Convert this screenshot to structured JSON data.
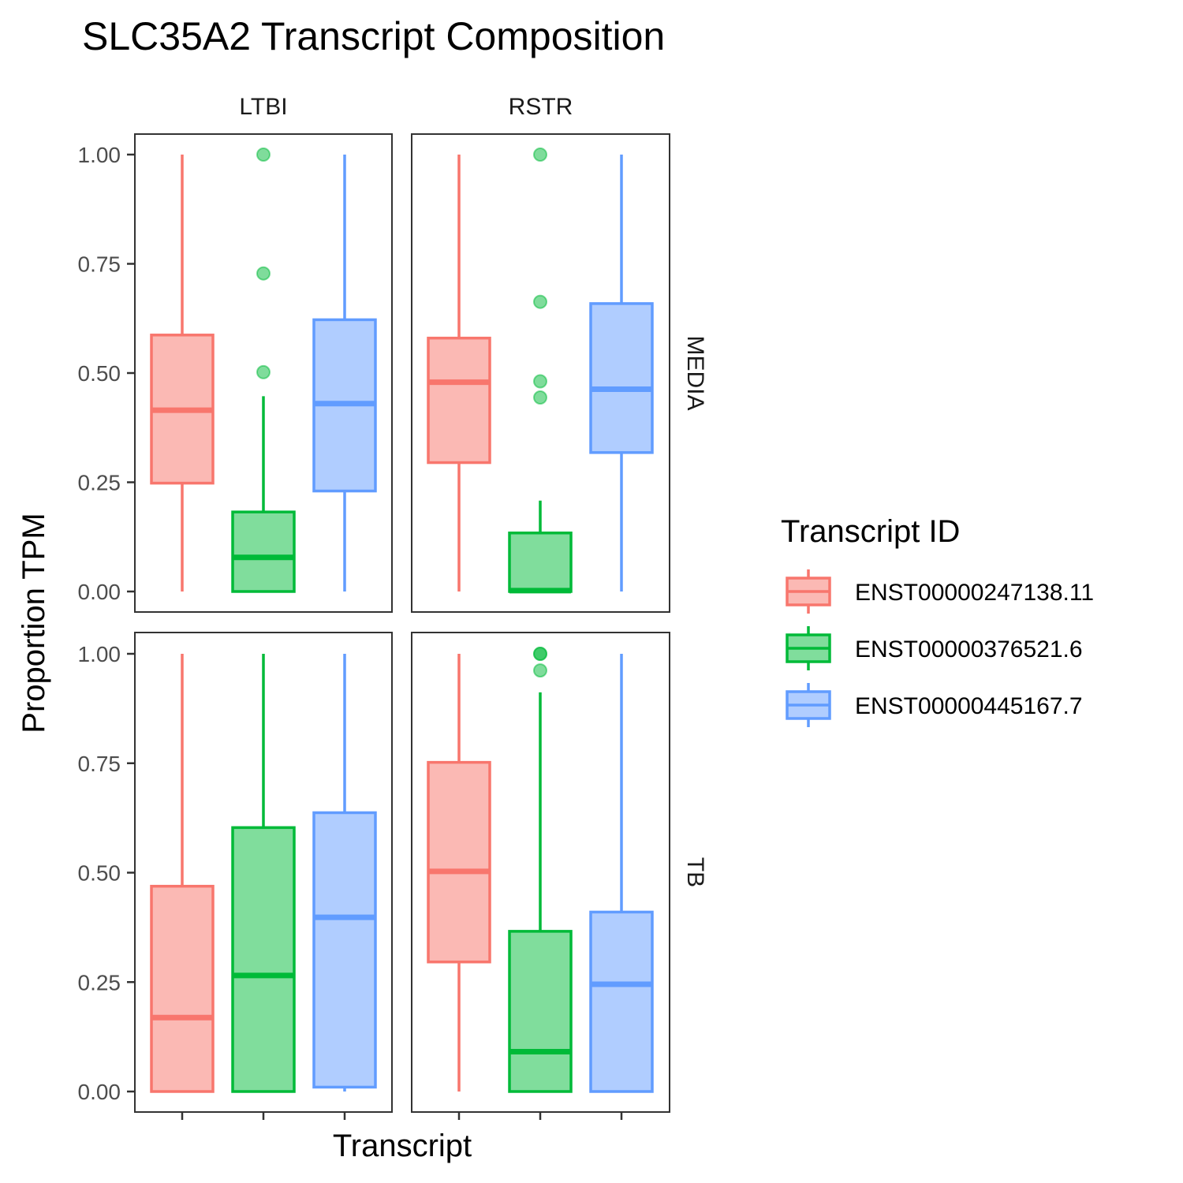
{
  "chart_data": {
    "type": "boxplot",
    "title": "SLC35A2 Transcript Composition",
    "xlabel": "Transcript",
    "ylabel": "Proportion TPM",
    "ylim": [
      0,
      1
    ],
    "yticks": [
      "0.00",
      "0.25",
      "0.50",
      "0.75",
      "1.00"
    ],
    "ytick_values": [
      0,
      0.25,
      0.5,
      0.75,
      1.0
    ],
    "facet_columns": [
      "LTBI",
      "RSTR"
    ],
    "facet_rows": [
      "MEDIA",
      "TB"
    ],
    "legend": {
      "title": "Transcript ID",
      "position": "right",
      "entries": [
        "ENST00000247138.11",
        "ENST00000376521.6",
        "ENST00000445167.7"
      ]
    },
    "colors": {
      "ENST00000247138.11": {
        "line": "#F8766D",
        "fill": "#FBB9B4"
      },
      "ENST00000376521.6": {
        "line": "#00BA38",
        "fill": "#80DD9C"
      },
      "ENST00000445167.7": {
        "line": "#619CFF",
        "fill": "#B0CDFF"
      }
    },
    "panels": [
      {
        "row": "MEDIA",
        "col": "LTBI",
        "boxes": [
          {
            "series": "ENST00000247138.11",
            "min": 0.0,
            "q1": 0.248,
            "median": 0.415,
            "q3": 0.587,
            "max": 1.0,
            "outliers": []
          },
          {
            "series": "ENST00000376521.6",
            "min": 0.0,
            "q1": 0.0,
            "median": 0.078,
            "q3": 0.182,
            "max": 0.447,
            "outliers": [
              1.0,
              0.728,
              0.502
            ]
          },
          {
            "series": "ENST00000445167.7",
            "min": 0.0,
            "q1": 0.23,
            "median": 0.43,
            "q3": 0.622,
            "max": 1.0,
            "outliers": []
          }
        ]
      },
      {
        "row": "MEDIA",
        "col": "RSTR",
        "boxes": [
          {
            "series": "ENST00000247138.11",
            "min": 0.0,
            "q1": 0.295,
            "median": 0.479,
            "q3": 0.58,
            "max": 1.0,
            "outliers": []
          },
          {
            "series": "ENST00000376521.6",
            "min": 0.0,
            "q1": 0.0,
            "median": 0.002,
            "q3": 0.134,
            "max": 0.208,
            "outliers": [
              1.0,
              0.663,
              0.481,
              0.444
            ]
          },
          {
            "series": "ENST00000445167.7",
            "min": 0.0,
            "q1": 0.318,
            "median": 0.463,
            "q3": 0.659,
            "max": 1.0,
            "outliers": []
          }
        ]
      },
      {
        "row": "TB",
        "col": "LTBI",
        "boxes": [
          {
            "series": "ENST00000247138.11",
            "min": 0.0,
            "q1": 0.0,
            "median": 0.169,
            "q3": 0.469,
            "max": 1.0,
            "outliers": []
          },
          {
            "series": "ENST00000376521.6",
            "min": 0.0,
            "q1": 0.0,
            "median": 0.265,
            "q3": 0.603,
            "max": 1.0,
            "outliers": []
          },
          {
            "series": "ENST00000445167.7",
            "min": 0.0,
            "q1": 0.01,
            "median": 0.398,
            "q3": 0.637,
            "max": 1.0,
            "outliers": []
          }
        ]
      },
      {
        "row": "TB",
        "col": "RSTR",
        "boxes": [
          {
            "series": "ENST00000247138.11",
            "min": 0.0,
            "q1": 0.296,
            "median": 0.503,
            "q3": 0.752,
            "max": 1.0,
            "outliers": []
          },
          {
            "series": "ENST00000376521.6",
            "min": 0.0,
            "q1": 0.0,
            "median": 0.091,
            "q3": 0.366,
            "max": 0.912,
            "outliers": [
              1.0,
              1.0,
              0.962
            ]
          },
          {
            "series": "ENST00000445167.7",
            "min": 0.0,
            "q1": 0.0,
            "median": 0.245,
            "q3": 0.41,
            "max": 1.0,
            "outliers": []
          }
        ]
      }
    ]
  }
}
